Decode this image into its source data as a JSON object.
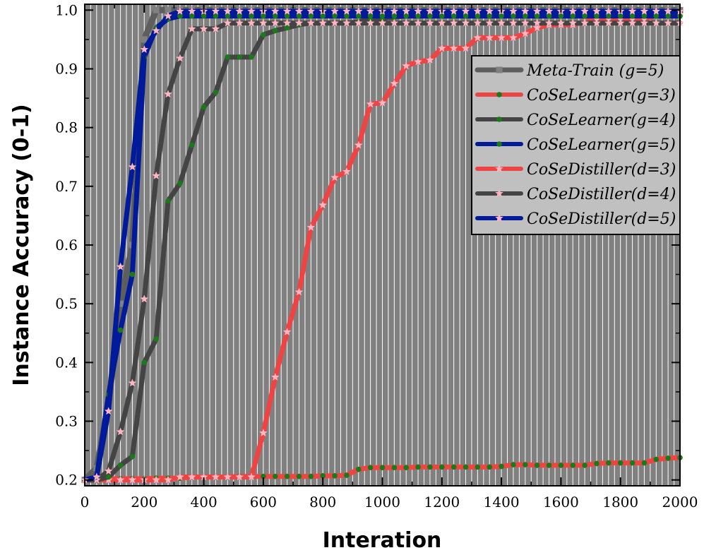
{
  "chart_data": {
    "type": "line",
    "title": "",
    "xlabel": "Interation",
    "ylabel": "Instance Accuracy (0-1)",
    "xlim": [
      0,
      2000
    ],
    "ylim": [
      0.19,
      1.01
    ],
    "xticks": [
      "0",
      "200",
      "400",
      "600",
      "800",
      "1000",
      "1200",
      "1400",
      "1600",
      "1800",
      "2000"
    ],
    "yticks": [
      "0.2",
      "0.3",
      "0.4",
      "0.5",
      "0.6",
      "0.7",
      "0.8",
      "0.9",
      "1.0"
    ],
    "grid": "vertical",
    "legend_position": "top-right",
    "colors": {
      "background": "#808080",
      "grid": "#ffffff",
      "meta_train": "#5e5e5e",
      "red": "#ee4444",
      "dark": "#444444",
      "blue": "#001a99",
      "green_marker": "#1a7a1a",
      "pink_marker": "#ffb6c1",
      "legend_bg": "#c0c0c0"
    },
    "series": [
      {
        "name": "Meta-Train (g=5)",
        "color": "#5e5e5e",
        "marker": "square",
        "x": [
          0,
          40,
          80,
          120,
          160,
          200,
          240,
          280,
          320,
          360,
          400,
          440,
          480,
          520,
          560,
          600,
          640,
          680,
          720,
          760,
          800,
          840,
          880,
          920,
          960,
          1000,
          1040,
          1080,
          1120,
          1160,
          1200,
          1240,
          1280,
          1320,
          1360,
          1400,
          1440,
          1480,
          1520,
          1560,
          1600,
          1640,
          1680,
          1720,
          1760,
          1800,
          1840,
          1880,
          1920,
          1960,
          2000
        ],
        "y": [
          0.2,
          0.22,
          0.33,
          0.5,
          0.6,
          0.95,
          1.0,
          1.0,
          1.0,
          1.0,
          1.0,
          1.0,
          1.0,
          1.0,
          1.0,
          1.0,
          1.0,
          1.0,
          1.0,
          1.0,
          1.0,
          1.0,
          1.0,
          1.0,
          1.0,
          1.0,
          1.0,
          1.0,
          1.0,
          1.0,
          1.0,
          1.0,
          1.0,
          1.0,
          1.0,
          1.0,
          1.0,
          1.0,
          1.0,
          1.0,
          1.0,
          1.0,
          1.0,
          1.0,
          1.0,
          1.0,
          1.0,
          1.0,
          1.0,
          1.0,
          1.0
        ]
      },
      {
        "name": "CoSeLearner(g=3)",
        "color": "#ee4444",
        "marker": "circle-green",
        "x": [
          0,
          40,
          80,
          120,
          160,
          200,
          240,
          280,
          320,
          360,
          400,
          440,
          480,
          520,
          560,
          600,
          640,
          680,
          720,
          760,
          800,
          840,
          880,
          920,
          960,
          1000,
          1040,
          1080,
          1120,
          1160,
          1200,
          1240,
          1280,
          1320,
          1360,
          1400,
          1440,
          1480,
          1520,
          1560,
          1600,
          1640,
          1680,
          1720,
          1760,
          1800,
          1840,
          1880,
          1920,
          1960,
          2000
        ],
        "y": [
          0.2,
          0.2,
          0.202,
          0.202,
          0.202,
          0.202,
          0.203,
          0.203,
          0.203,
          0.205,
          0.205,
          0.205,
          0.205,
          0.206,
          0.206,
          0.206,
          0.206,
          0.206,
          0.206,
          0.206,
          0.207,
          0.207,
          0.208,
          0.218,
          0.221,
          0.221,
          0.221,
          0.221,
          0.222,
          0.222,
          0.222,
          0.222,
          0.222,
          0.222,
          0.222,
          0.223,
          0.226,
          0.226,
          0.225,
          0.225,
          0.225,
          0.225,
          0.225,
          0.228,
          0.229,
          0.229,
          0.229,
          0.229,
          0.235,
          0.237,
          0.238
        ]
      },
      {
        "name": "CoSeLearner(g=4)",
        "color": "#444444",
        "marker": "circle-green",
        "x": [
          0,
          40,
          80,
          120,
          160,
          200,
          240,
          280,
          320,
          360,
          400,
          440,
          480,
          520,
          560,
          600,
          640,
          680,
          720,
          760,
          800,
          840,
          880,
          920,
          960,
          1000,
          1040,
          1080,
          1120,
          1160,
          1200,
          1240,
          1280,
          1320,
          1360,
          1400,
          1440,
          1480,
          1520,
          1560,
          1600,
          1640,
          1680,
          1720,
          1760,
          1800,
          1840,
          1880,
          1920,
          1960,
          2000
        ],
        "y": [
          0.2,
          0.2,
          0.205,
          0.225,
          0.24,
          0.4,
          0.44,
          0.675,
          0.705,
          0.77,
          0.835,
          0.86,
          0.92,
          0.92,
          0.92,
          0.958,
          0.965,
          0.97,
          0.975,
          0.978,
          0.978,
          0.978,
          0.978,
          0.98,
          0.985,
          0.986,
          0.988,
          0.99,
          0.99,
          0.99,
          0.99,
          0.99,
          0.99,
          0.99,
          0.99,
          0.99,
          0.99,
          0.99,
          0.99,
          0.99,
          0.99,
          0.99,
          0.99,
          0.99,
          0.99,
          0.99,
          0.99,
          0.99,
          0.99,
          0.99,
          0.99
        ]
      },
      {
        "name": "CoSeLearner(g=5)",
        "color": "#001a99",
        "marker": "circle-green",
        "x": [
          0,
          40,
          80,
          120,
          160,
          200,
          240,
          280,
          320,
          360,
          400,
          440,
          480,
          520,
          560,
          600,
          640,
          680,
          720,
          760,
          800,
          840,
          880,
          920,
          960,
          1000,
          1040,
          1080,
          1120,
          1160,
          1200,
          1240,
          1280,
          1320,
          1360,
          1400,
          1440,
          1480,
          1520,
          1560,
          1600,
          1640,
          1680,
          1720,
          1760,
          1800,
          1840,
          1880,
          1920,
          1960,
          2000
        ],
        "y": [
          0.2,
          0.205,
          0.345,
          0.455,
          0.55,
          0.92,
          0.97,
          0.985,
          0.99,
          0.99,
          0.99,
          0.99,
          0.99,
          0.99,
          0.99,
          0.99,
          0.99,
          0.99,
          0.99,
          0.99,
          0.99,
          0.99,
          0.99,
          0.99,
          0.99,
          0.99,
          0.99,
          0.99,
          0.99,
          0.99,
          0.99,
          0.99,
          0.99,
          0.99,
          0.99,
          0.99,
          0.99,
          0.99,
          0.99,
          0.99,
          0.99,
          0.99,
          0.99,
          0.99,
          0.99,
          0.99,
          0.99,
          0.99,
          0.99,
          0.99,
          0.99
        ]
      },
      {
        "name": "CoSeDistiller(d=3)",
        "color": "#ee4444",
        "marker": "star-pink",
        "x": [
          0,
          40,
          80,
          120,
          160,
          200,
          240,
          280,
          320,
          360,
          400,
          440,
          480,
          520,
          560,
          600,
          640,
          680,
          720,
          760,
          800,
          840,
          880,
          920,
          960,
          1000,
          1040,
          1080,
          1120,
          1160,
          1200,
          1240,
          1280,
          1320,
          1360,
          1400,
          1440,
          1480,
          1520,
          1560,
          1600,
          1640,
          1680,
          1720,
          1760,
          1800,
          1840,
          1880,
          1920,
          1960,
          2000
        ],
        "y": [
          0.2,
          0.2,
          0.2,
          0.2,
          0.2,
          0.2,
          0.2,
          0.2,
          0.205,
          0.205,
          0.205,
          0.205,
          0.205,
          0.205,
          0.205,
          0.28,
          0.375,
          0.452,
          0.52,
          0.63,
          0.668,
          0.715,
          0.725,
          0.77,
          0.84,
          0.842,
          0.875,
          0.905,
          0.912,
          0.915,
          0.935,
          0.935,
          0.935,
          0.953,
          0.953,
          0.953,
          0.953,
          0.96,
          0.97,
          0.975,
          0.975,
          0.975,
          0.98,
          0.985,
          0.985,
          0.985,
          0.985,
          0.985,
          0.99,
          0.99,
          0.99
        ]
      },
      {
        "name": "CoSeDistiller(d=4)",
        "color": "#444444",
        "marker": "star-pink",
        "x": [
          0,
          40,
          80,
          120,
          160,
          200,
          240,
          280,
          320,
          360,
          400,
          440,
          480,
          520,
          560,
          600,
          640,
          680,
          720,
          760,
          800,
          840,
          880,
          920,
          960,
          1000,
          1040,
          1080,
          1120,
          1160,
          1200,
          1240,
          1280,
          1320,
          1360,
          1400,
          1440,
          1480,
          1520,
          1560,
          1600,
          1640,
          1680,
          1720,
          1760,
          1800,
          1840,
          1880,
          1920,
          1960,
          2000
        ],
        "y": [
          0.2,
          0.2,
          0.215,
          0.282,
          0.365,
          0.508,
          0.718,
          0.857,
          0.918,
          0.968,
          0.968,
          0.968,
          0.978,
          0.978,
          0.978,
          0.978,
          0.978,
          0.978,
          0.978,
          0.978,
          0.978,
          0.978,
          0.978,
          0.978,
          0.978,
          0.978,
          0.978,
          0.978,
          0.978,
          0.978,
          0.978,
          0.978,
          0.978,
          0.978,
          0.978,
          0.978,
          0.978,
          0.978,
          0.978,
          0.978,
          0.978,
          0.978,
          0.978,
          0.978,
          0.978,
          0.978,
          0.978,
          0.978,
          0.978,
          0.978,
          0.978
        ]
      },
      {
        "name": "CoSeDistiller(d=5)",
        "color": "#001a99",
        "marker": "star-pink",
        "x": [
          0,
          40,
          80,
          120,
          160,
          200,
          240,
          280,
          320,
          360,
          400,
          440,
          480,
          520,
          560,
          600,
          640,
          680,
          720,
          760,
          800,
          840,
          880,
          920,
          960,
          1000,
          1040,
          1080,
          1120,
          1160,
          1200,
          1240,
          1280,
          1320,
          1360,
          1400,
          1440,
          1480,
          1520,
          1560,
          1600,
          1640,
          1680,
          1720,
          1760,
          1800,
          1840,
          1880,
          1920,
          1960,
          2000
        ],
        "y": [
          0.2,
          0.205,
          0.317,
          0.563,
          0.733,
          0.933,
          0.965,
          0.99,
          0.998,
          0.998,
          0.998,
          0.998,
          0.998,
          0.998,
          0.998,
          0.998,
          0.998,
          0.998,
          0.998,
          0.998,
          0.998,
          0.998,
          0.998,
          0.998,
          0.998,
          0.998,
          0.998,
          0.998,
          0.998,
          0.998,
          0.998,
          0.998,
          0.998,
          0.998,
          0.998,
          0.998,
          0.998,
          0.998,
          0.998,
          0.998,
          0.998,
          0.998,
          0.998,
          0.998,
          0.998,
          0.998,
          0.998,
          0.998,
          0.998,
          0.998,
          0.998
        ]
      }
    ]
  }
}
